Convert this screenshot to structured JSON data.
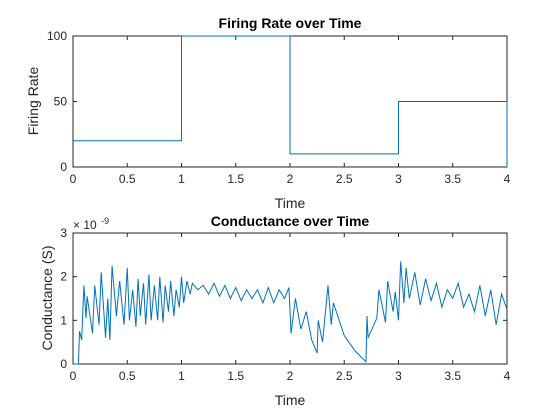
{
  "chart_data": [
    {
      "type": "line",
      "title": "Firing Rate over Time",
      "xlabel": "Time",
      "ylabel": "Firing Rate",
      "xlim": [
        0,
        4
      ],
      "ylim": [
        0,
        100
      ],
      "xticks": [
        "0",
        "0.5",
        "1",
        "1.5",
        "2",
        "2.5",
        "3",
        "3.5",
        "4"
      ],
      "yticks": [
        "0",
        "50",
        "100"
      ],
      "grid": false,
      "series": [
        {
          "step": true,
          "x": [
            0,
            1,
            1,
            2,
            2,
            3,
            3,
            4,
            4
          ],
          "y": [
            20,
            20,
            100,
            100,
            10,
            10,
            50,
            50,
            0
          ]
        }
      ]
    },
    {
      "type": "line",
      "title": "Conductance over Time",
      "xlabel": "Time",
      "ylabel": "Conductance (S)",
      "xlim": [
        0,
        4
      ],
      "ylim": [
        0,
        3
      ],
      "y_exponent_base": "× 10",
      "y_exponent_power": "-9",
      "xticks": [
        "0",
        "0.5",
        "1",
        "1.5",
        "2",
        "2.5",
        "3",
        "3.5",
        "4"
      ],
      "yticks": [
        "0",
        "1",
        "2",
        "3"
      ],
      "grid": false,
      "series": [
        {
          "x": [
            0,
            0.05,
            0.06,
            0.08,
            0.1,
            0.12,
            0.13,
            0.18,
            0.2,
            0.24,
            0.26,
            0.3,
            0.32,
            0.34,
            0.36,
            0.4,
            0.43,
            0.47,
            0.5,
            0.52,
            0.55,
            0.58,
            0.6,
            0.62,
            0.65,
            0.67,
            0.7,
            0.72,
            0.75,
            0.78,
            0.8,
            0.83,
            0.85,
            0.88,
            0.9,
            0.93,
            0.95,
            0.98,
            1.0,
            1.02,
            1.05,
            1.08,
            1.1,
            1.15,
            1.2,
            1.25,
            1.3,
            1.35,
            1.4,
            1.45,
            1.5,
            1.55,
            1.6,
            1.65,
            1.7,
            1.75,
            1.8,
            1.85,
            1.9,
            1.95,
            1.99,
            2.01,
            2.05,
            2.1,
            2.15,
            2.2,
            2.25,
            2.26,
            2.3,
            2.35,
            2.38,
            2.4,
            2.5,
            2.6,
            2.7,
            2.71,
            2.72,
            2.8,
            2.82,
            2.88,
            2.9,
            2.95,
            2.97,
            3.0,
            3.02,
            3.05,
            3.07,
            3.1,
            3.15,
            3.2,
            3.25,
            3.3,
            3.35,
            3.4,
            3.45,
            3.5,
            3.55,
            3.6,
            3.65,
            3.7,
            3.75,
            3.8,
            3.85,
            3.9,
            3.95,
            4.0
          ],
          "y": [
            0,
            0,
            0.75,
            0.55,
            1.8,
            1.05,
            1.55,
            0.7,
            1.8,
            0.9,
            2.1,
            0.6,
            1.5,
            0.55,
            2.25,
            1.1,
            1.9,
            0.9,
            2.2,
            1.0,
            1.7,
            0.85,
            1.95,
            1.1,
            1.85,
            0.9,
            2.05,
            1.0,
            1.8,
            1.0,
            2.0,
            0.95,
            1.8,
            1.2,
            1.9,
            1.1,
            1.7,
            1.3,
            2.0,
            1.4,
            1.9,
            1.6,
            1.85,
            1.7,
            1.8,
            1.6,
            1.85,
            1.55,
            1.8,
            1.5,
            1.75,
            1.45,
            1.7,
            1.5,
            1.7,
            1.4,
            1.75,
            1.4,
            1.7,
            1.5,
            1.75,
            0.7,
            1.5,
            0.8,
            1.2,
            0.55,
            0.25,
            1.0,
            0.5,
            1.8,
            0.9,
            1.4,
            0.65,
            0.3,
            0.05,
            1.1,
            0.6,
            1.05,
            1.7,
            0.95,
            1.9,
            1.2,
            1.65,
            1.0,
            2.35,
            1.4,
            2.2,
            1.5,
            2.1,
            1.35,
            1.95,
            1.45,
            1.85,
            1.3,
            1.7,
            1.5,
            1.85,
            1.3,
            1.6,
            1.2,
            1.8,
            1.1,
            1.7,
            0.9,
            1.6,
            1.25
          ]
        }
      ]
    }
  ]
}
